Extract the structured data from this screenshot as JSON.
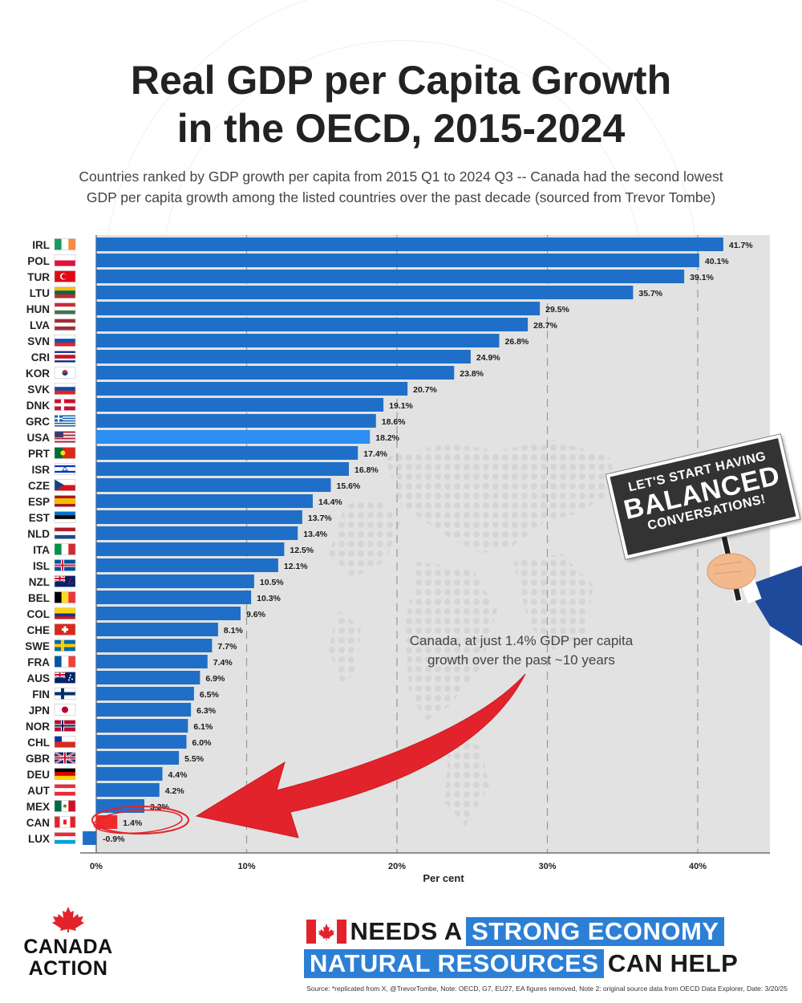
{
  "title_line1": "Real GDP per Capita Growth",
  "title_line2": "in the OECD, 2015-2024",
  "subtitle_line1": "Countries ranked by GDP growth per capita from 2015 Q1 to 2024 Q3 -- Canada had the second lowest",
  "subtitle_line2": "GDP per capita growth among the listed countries over the past decade (sourced from Trevor Tombe)",
  "callout_line1": "Canada, at just 1.4% GDP per capita",
  "callout_line2": "growth over the past ~10 years",
  "sign": {
    "line1": "LET'S START HAVING",
    "line2": "BALANCED",
    "line3": "CONVERSATIONS!"
  },
  "logo": {
    "line1": "CANADA",
    "line2": "ACTION"
  },
  "banner": {
    "line1_plain": "NEEDS A",
    "line1_highlight": "STRONG ECONOMY",
    "line2_highlight": "NATURAL RESOURCES",
    "line2_plain": "CAN HELP"
  },
  "source": "Source: *replicated from X, @TrevorTombe, Note: OECD, G7, EU27, EA figures removed, Note 2: original source data from OECD Data Explorer, Date: 3/20/25",
  "colors": {
    "bar": "#1f6fc8",
    "usa": "#2b8ef0",
    "can": "#ee2a2a",
    "plot_bg": "#e2e2e2",
    "accent_red": "#e3232b",
    "highlight": "#2c7fd5"
  },
  "chart_data": {
    "type": "bar",
    "orientation": "horizontal",
    "categories": [
      "IRL",
      "POL",
      "TUR",
      "LTU",
      "HUN",
      "LVA",
      "SVN",
      "CRI",
      "KOR",
      "SVK",
      "DNK",
      "GRC",
      "USA",
      "PRT",
      "ISR",
      "CZE",
      "ESP",
      "EST",
      "NLD",
      "ITA",
      "ISL",
      "NZL",
      "BEL",
      "COL",
      "CHE",
      "SWE",
      "FRA",
      "AUS",
      "FIN",
      "JPN",
      "NOR",
      "CHL",
      "GBR",
      "DEU",
      "AUT",
      "MEX",
      "CAN",
      "LUX"
    ],
    "values": [
      41.7,
      40.1,
      39.1,
      35.7,
      29.5,
      28.7,
      26.8,
      24.9,
      23.8,
      20.7,
      19.1,
      18.6,
      18.2,
      17.4,
      16.8,
      15.6,
      14.4,
      13.7,
      13.4,
      12.5,
      12.1,
      10.5,
      10.3,
      9.6,
      8.1,
      7.7,
      7.4,
      6.9,
      6.5,
      6.3,
      6.1,
      6.0,
      5.5,
      4.4,
      4.2,
      3.2,
      1.4,
      -0.9
    ],
    "data_labels": [
      "41.7%",
      "40.1%",
      "39.1%",
      "35.7%",
      "29.5%",
      "28.7%",
      "26.8%",
      "24.9%",
      "23.8%",
      "20.7%",
      "19.1%",
      "18.6%",
      "18.2%",
      "17.4%",
      "16.8%",
      "15.6%",
      "14.4%",
      "13.7%",
      "13.4%",
      "12.5%",
      "12.1%",
      "10.5%",
      "10.3%",
      "9.6%",
      "8.1%",
      "7.7%",
      "7.4%",
      "6.9%",
      "6.5%",
      "6.3%",
      "6.1%",
      "6.0%",
      "5.5%",
      "4.4%",
      "4.2%",
      "3.2%",
      "1.4%",
      "-0.9%"
    ],
    "xlabel": "Per cent",
    "xlim": [
      -1,
      44.8
    ],
    "xticks": [
      0,
      10,
      20,
      30,
      40
    ],
    "xtick_labels": [
      "0%",
      "10%",
      "20%",
      "30%",
      "40%"
    ],
    "grid": "vertical dashed",
    "highlighted": {
      "USA": "usa",
      "CAN": "can"
    }
  }
}
